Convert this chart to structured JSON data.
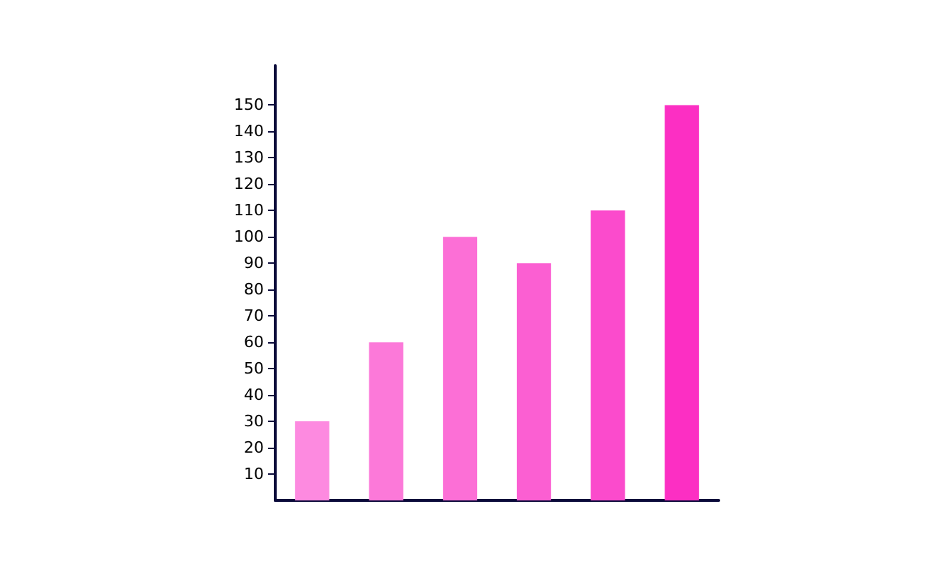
{
  "chart_data": {
    "type": "bar",
    "categories": [
      null,
      null,
      null,
      null,
      null,
      null
    ],
    "values": [
      30,
      60,
      100,
      90,
      110,
      150
    ],
    "colors": [
      "#fd8ae0",
      "#fc79d9",
      "#fc6fd6",
      "#fb5fd2",
      "#fb4bcc",
      "#fc2fc3"
    ],
    "ylim": [
      0,
      165
    ],
    "yticks": [
      10,
      20,
      30,
      40,
      50,
      60,
      70,
      80,
      90,
      100,
      110,
      120,
      130,
      140,
      150
    ],
    "grid": false,
    "tick_labels": "y"
  }
}
